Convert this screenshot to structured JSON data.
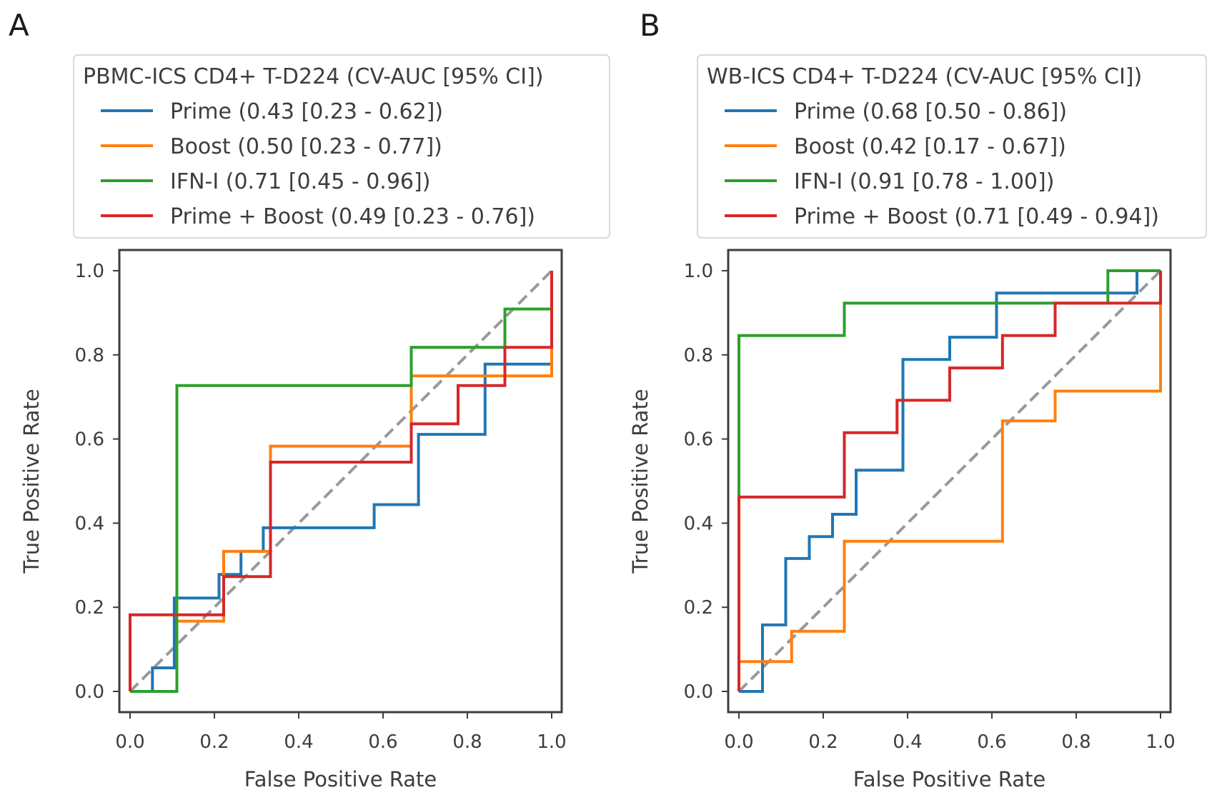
{
  "chart_data": [
    {
      "type": "line",
      "panel_label": "A",
      "legend_title": "PBMC-ICS CD4+ T-D224 (CV-AUC [95% CI])",
      "xlabel": "False Positive Rate",
      "ylabel": "True Positive Rate",
      "xlim": [
        0.0,
        1.0
      ],
      "ylim": [
        0.0,
        1.0
      ],
      "xticks": [
        "0.0",
        "0.2",
        "0.4",
        "0.6",
        "0.8",
        "1.0"
      ],
      "yticks": [
        "0.0",
        "0.2",
        "0.4",
        "0.6",
        "0.8",
        "1.0"
      ],
      "series": [
        {
          "name": "Prime (0.43 [0.23 - 0.62])",
          "color": "#1f77b4",
          "x": [
            0,
            0.053,
            0.053,
            0.105,
            0.105,
            0.211,
            0.211,
            0.263,
            0.263,
            0.316,
            0.316,
            0.579,
            0.579,
            0.684,
            0.684,
            0.842,
            0.842,
            1.0
          ],
          "y": [
            0,
            0,
            0.056,
            0.056,
            0.222,
            0.222,
            0.278,
            0.278,
            0.333,
            0.333,
            0.389,
            0.389,
            0.444,
            0.444,
            0.611,
            0.611,
            0.778,
            0.778
          ]
        },
        {
          "name": "Boost (0.50 [0.23 - 0.77])",
          "color": "#ff7f0e",
          "x": [
            0,
            0.111,
            0.111,
            0.222,
            0.222,
            0.333,
            0.333,
            0.667,
            0.667,
            1.0,
            1.0
          ],
          "y": [
            0,
            0,
            0.167,
            0.167,
            0.333,
            0.333,
            0.583,
            0.583,
            0.75,
            0.75,
            1.0
          ]
        },
        {
          "name": "IFN-I (0.71 [0.45 - 0.96])",
          "color": "#2ca02c",
          "x": [
            0,
            0.111,
            0.111,
            0.667,
            0.667,
            0.889,
            0.889,
            1.0
          ],
          "y": [
            0,
            0,
            0.727,
            0.727,
            0.818,
            0.818,
            0.909,
            0.909
          ]
        },
        {
          "name": "Prime + Boost (0.49 [0.23 - 0.76])",
          "color": "#d62728",
          "x": [
            0,
            0,
            0.222,
            0.222,
            0.333,
            0.333,
            0.667,
            0.667,
            0.778,
            0.778,
            0.889,
            0.889,
            1.0,
            1.0
          ],
          "y": [
            0,
            0.182,
            0.182,
            0.273,
            0.273,
            0.545,
            0.545,
            0.636,
            0.636,
            0.727,
            0.727,
            0.818,
            0.818,
            1.0
          ]
        }
      ],
      "diagonal": {
        "style": "dashed",
        "color": "#999999",
        "x": [
          0,
          1
        ],
        "y": [
          0,
          1
        ]
      }
    },
    {
      "type": "line",
      "panel_label": "B",
      "legend_title": "WB-ICS CD4+ T-D224 (CV-AUC [95% CI])",
      "xlabel": "False Positive Rate",
      "ylabel": "True Positive Rate",
      "xlim": [
        0.0,
        1.0
      ],
      "ylim": [
        0.0,
        1.0
      ],
      "xticks": [
        "0.0",
        "0.2",
        "0.4",
        "0.6",
        "0.8",
        "1.0"
      ],
      "yticks": [
        "0.0",
        "0.2",
        "0.4",
        "0.6",
        "0.8",
        "1.0"
      ],
      "series": [
        {
          "name": "Prime (0.68 [0.50 - 0.86])",
          "color": "#1f77b4",
          "x": [
            0,
            0.056,
            0.056,
            0.111,
            0.111,
            0.167,
            0.167,
            0.222,
            0.222,
            0.278,
            0.278,
            0.389,
            0.389,
            0.5,
            0.5,
            0.611,
            0.611,
            0.944,
            0.944,
            1.0
          ],
          "y": [
            0,
            0,
            0.158,
            0.158,
            0.316,
            0.316,
            0.368,
            0.368,
            0.421,
            0.421,
            0.526,
            0.526,
            0.789,
            0.789,
            0.842,
            0.842,
            0.947,
            0.947,
            1.0,
            1.0
          ]
        },
        {
          "name": "Boost (0.42 [0.17 - 0.67])",
          "color": "#ff7f0e",
          "x": [
            0,
            0.125,
            0.125,
            0.25,
            0.25,
            0.625,
            0.625,
            0.75,
            0.75,
            1.0,
            1.0
          ],
          "y": [
            0.071,
            0.071,
            0.143,
            0.143,
            0.357,
            0.357,
            0.643,
            0.643,
            0.714,
            0.714,
            1.0
          ]
        },
        {
          "name": "IFN-I (0.91 [0.78 - 1.00])",
          "color": "#2ca02c",
          "x": [
            0,
            0,
            0.25,
            0.25,
            0.875,
            0.875,
            1.0
          ],
          "y": [
            0.462,
            0.846,
            0.846,
            0.923,
            0.923,
            1.0,
            1.0
          ]
        },
        {
          "name": "Prime + Boost (0.71 [0.49 - 0.94])",
          "color": "#d62728",
          "x": [
            0,
            0,
            0.25,
            0.25,
            0.375,
            0.375,
            0.5,
            0.5,
            0.625,
            0.625,
            0.75,
            0.75,
            1.0,
            1.0
          ],
          "y": [
            0,
            0.462,
            0.462,
            0.615,
            0.615,
            0.692,
            0.692,
            0.769,
            0.769,
            0.846,
            0.846,
            0.923,
            0.923,
            1.0
          ]
        }
      ],
      "diagonal": {
        "style": "dashed",
        "color": "#999999",
        "x": [
          0,
          1
        ],
        "y": [
          0,
          1
        ]
      }
    }
  ]
}
